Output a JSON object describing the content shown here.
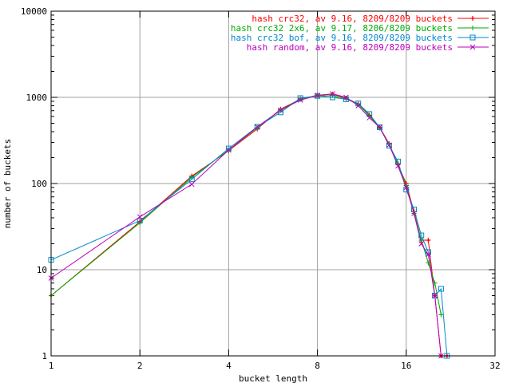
{
  "chart_data": {
    "type": "line",
    "xlabel": "bucket length",
    "ylabel": "number of buckets",
    "x_scale": "log2",
    "y_scale": "log10",
    "xlim": [
      1,
      32
    ],
    "ylim": [
      1,
      10000
    ],
    "x_ticks": [
      1,
      2,
      4,
      8,
      16,
      32
    ],
    "x_tick_labels": [
      "1",
      "2",
      "4",
      "8",
      "16",
      "32"
    ],
    "y_ticks": [
      1,
      10,
      100,
      1000,
      10000
    ],
    "y_tick_labels": [
      "1",
      "10",
      "100",
      "1000",
      "10000"
    ],
    "grid": true,
    "legend_position": "top-right",
    "series": [
      {
        "name": "hash crc32, av 9.16, 8209/8209 buckets",
        "color": "#ff0000",
        "marker": "plus",
        "x": [
          1,
          2,
          3,
          4,
          5,
          6,
          7,
          8,
          9,
          10,
          11,
          12,
          13,
          14,
          15,
          16,
          17,
          18,
          19,
          20,
          21,
          22
        ],
        "y": [
          5,
          36,
          122,
          240,
          430,
          730,
          950,
          1060,
          1090,
          980,
          840,
          620,
          450,
          290,
          165,
          100,
          47,
          22,
          22,
          5,
          1,
          1
        ]
      },
      {
        "name": "hash crc32 2x6, av 9.17, 8206/8209 buckets",
        "color": "#00aa00",
        "marker": "cross",
        "x": [
          1,
          2,
          3,
          4,
          5,
          6,
          7,
          8,
          9,
          10,
          11,
          12,
          13,
          14,
          15,
          16,
          17,
          18,
          19,
          20,
          21
        ],
        "y": [
          5,
          35,
          118,
          245,
          445,
          710,
          960,
          1040,
          1050,
          960,
          830,
          610,
          440,
          285,
          170,
          95,
          45,
          22,
          12,
          7,
          3
        ]
      },
      {
        "name": "hash crc32 bof, av 9.16, 8209/8209 buckets",
        "color": "#0088cc",
        "marker": "square",
        "x": [
          1,
          2,
          3,
          4,
          5,
          6,
          7,
          8,
          9,
          10,
          11,
          12,
          13,
          14,
          15,
          16,
          17,
          18,
          19,
          20,
          21,
          22
        ],
        "y": [
          13,
          37,
          112,
          255,
          455,
          670,
          980,
          1040,
          1000,
          950,
          850,
          640,
          450,
          275,
          180,
          85,
          50,
          25,
          16,
          5,
          6,
          1
        ]
      },
      {
        "name": "hash random, av 9.16, 8209/8209 buckets",
        "color": "#bb00bb",
        "marker": "x",
        "x": [
          1,
          2,
          3,
          4,
          5,
          6,
          7,
          8,
          9,
          10,
          11,
          12,
          13,
          14,
          15,
          16,
          17,
          18,
          19,
          20,
          21
        ],
        "y": [
          8,
          41,
          98,
          245,
          455,
          710,
          930,
          1050,
          1100,
          1000,
          800,
          580,
          450,
          280,
          160,
          90,
          45,
          20,
          15,
          5,
          1
        ]
      }
    ]
  }
}
